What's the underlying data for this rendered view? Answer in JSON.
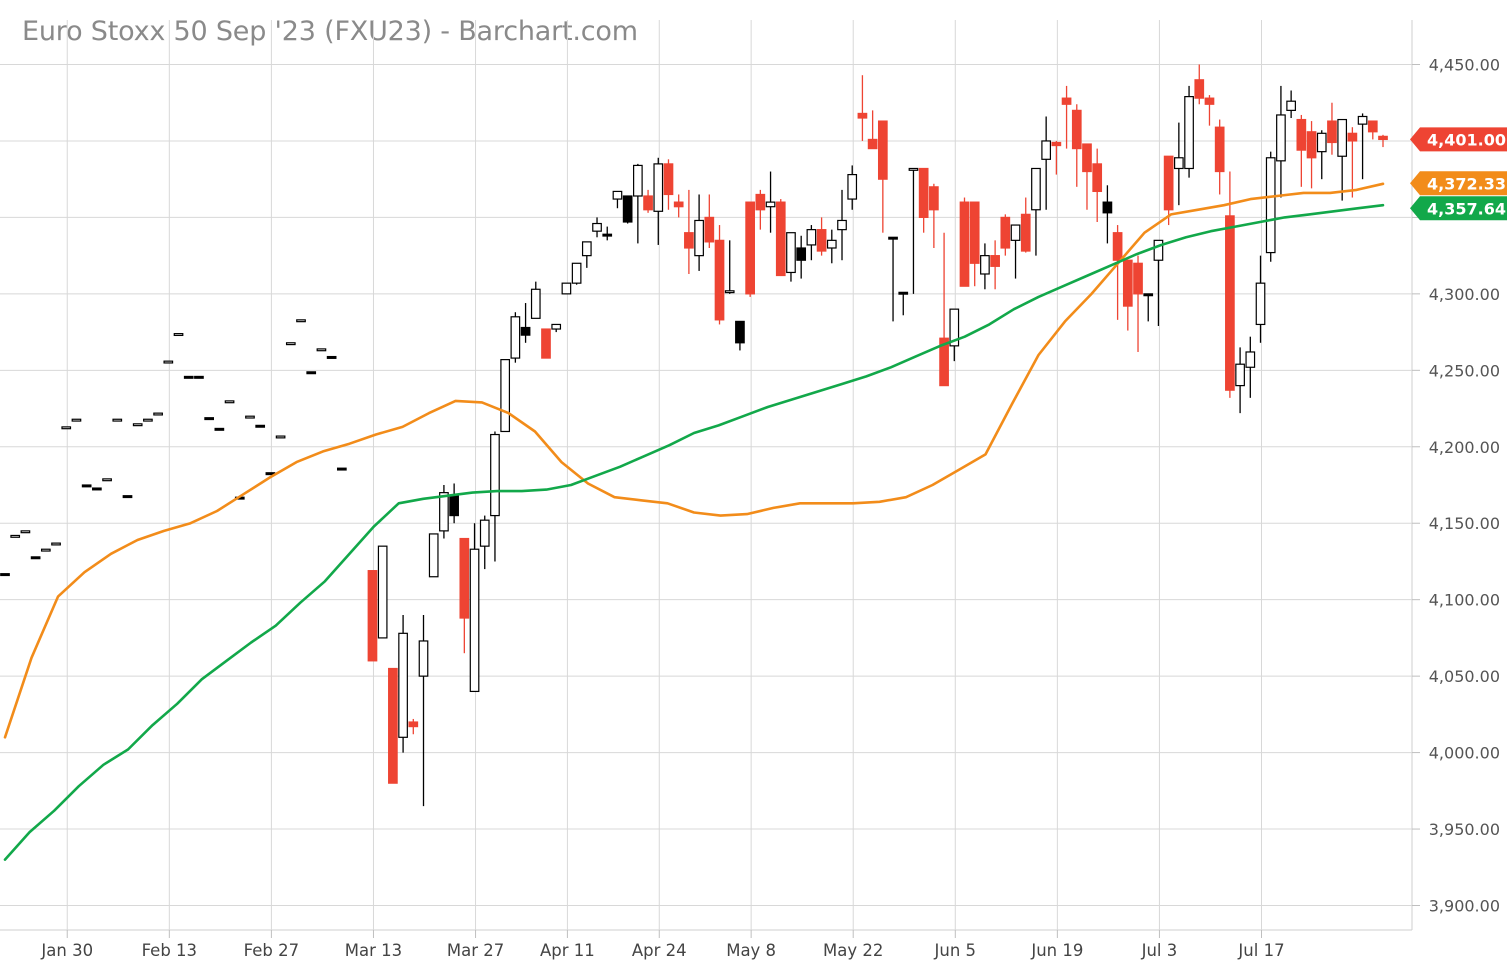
{
  "title": "Euro Stoxx 50 Sep '23 (FXU23) - Barchart.com",
  "colors": {
    "up": "#000000",
    "down": "#ee4433",
    "ma_fast": "#f28c1a",
    "ma_slow": "#12a84a",
    "grid": "#d8d8d8"
  },
  "chart_data": {
    "type": "candlestick",
    "title": "Euro Stoxx 50 Sep '23 (FXU23) - Barchart.com",
    "ylim": [
      3880,
      4465
    ],
    "y_ticks": [
      3900,
      3950,
      4000,
      4050,
      4100,
      4150,
      4200,
      4250,
      4300,
      4350,
      4400,
      4450
    ],
    "y_tick_labels": [
      "3,900.00",
      "3,950.00",
      "4,000.00",
      "4,050.00",
      "4,100.00",
      "4,150.00",
      "4,200.00",
      "4,250.00",
      "4,300.00",
      "",
      "",
      "4,450.00"
    ],
    "x_tick_labels": [
      "Jan 30",
      "Feb 13",
      "Feb 27",
      "Mar 13",
      "Mar 27",
      "Apr 11",
      "Apr 24",
      "May 8",
      "May 22",
      "Jun 5",
      "Jun 19",
      "Jul 3",
      "Jul 17"
    ],
    "x_tick_index": [
      6,
      16,
      26,
      36,
      46,
      55,
      64,
      73,
      83,
      93,
      103,
      113,
      123
    ],
    "x_index_range": [
      2.6,
      132
    ],
    "grid": true,
    "ohlc": [
      [
        4117,
        4117,
        4117,
        4117
      ],
      [
        4142,
        4142,
        4142,
        4142
      ],
      [
        4145,
        4145,
        4145,
        4145
      ],
      [
        4128,
        4128,
        4128,
        4128
      ],
      [
        4133,
        4133,
        4133,
        4133
      ],
      [
        4137,
        4137,
        4137,
        4137
      ],
      [
        4213,
        4213,
        4213,
        4213
      ],
      [
        4218,
        4218,
        4218,
        4218
      ],
      [
        4175,
        4175,
        4175,
        4175
      ],
      [
        4173,
        4173,
        4173,
        4173
      ],
      [
        4179,
        4179,
        4179,
        4179
      ],
      [
        4218,
        4218,
        4218,
        4218
      ],
      [
        4168,
        4168,
        4168,
        4168
      ],
      [
        4215,
        4215,
        4215,
        4215
      ],
      [
        4218,
        4218,
        4218,
        4218
      ],
      [
        4222,
        4222,
        4222,
        4222
      ],
      [
        4256,
        4256,
        4256,
        4256
      ],
      [
        4274,
        4274,
        4274,
        4274
      ],
      [
        4246,
        4246,
        4246,
        4246
      ],
      [
        4246,
        4246,
        4246,
        4246
      ],
      [
        4219,
        4219,
        4219,
        4219
      ],
      [
        4212,
        4212,
        4212,
        4212
      ],
      [
        4230,
        4230,
        4230,
        4230
      ],
      [
        4167,
        4167,
        4167,
        4167
      ],
      [
        4220,
        4220,
        4220,
        4220
      ],
      [
        4214,
        4214,
        4214,
        4214
      ],
      [
        4183,
        4183,
        4183,
        4183
      ],
      [
        4207,
        4207,
        4207,
        4207
      ],
      [
        4268,
        4268,
        4268,
        4268
      ],
      [
        4283,
        4283,
        4283,
        4283
      ],
      [
        4249,
        4249,
        4249,
        4249
      ],
      [
        4264,
        4264,
        4264,
        4264
      ],
      [
        4259,
        4259,
        4259,
        4259
      ],
      [
        4186,
        4186,
        4186,
        4186
      ],
      [
        null,
        null,
        null,
        null
      ],
      [
        null,
        null,
        null,
        null
      ],
      [
        4119,
        4119,
        4060,
        4060
      ],
      [
        4075,
        4135,
        4075,
        4135
      ],
      [
        4055,
        4055,
        3980,
        3980
      ],
      [
        4010,
        4090,
        4000,
        4078
      ],
      [
        4020,
        4022,
        4012,
        4017
      ],
      [
        4050,
        4090,
        3965,
        4073
      ],
      [
        4115,
        4135,
        4115,
        4143
      ],
      [
        4145,
        4175,
        4140,
        4170
      ],
      [
        4155,
        4176,
        4150,
        4168
      ],
      [
        4140,
        4140,
        4065,
        4088
      ],
      [
        4040,
        4150,
        4040,
        4133
      ],
      [
        4135,
        4155,
        4120,
        4152
      ],
      [
        4155,
        4210,
        4125,
        4208
      ],
      [
        4210,
        4257,
        4210,
        4257
      ],
      [
        4258,
        4288,
        4255,
        4285
      ],
      [
        4273,
        4294,
        4268,
        4278
      ],
      [
        4284,
        4308,
        4285,
        4303
      ],
      [
        4277,
        4277,
        4258,
        4258
      ],
      [
        4277,
        4279,
        4275,
        4280
      ],
      [
        4300,
        4307,
        4300,
        4307
      ],
      [
        4307,
        4320,
        4306,
        4320
      ],
      [
        4325,
        4334,
        4317,
        4334
      ],
      [
        4341,
        4350,
        4337,
        4346
      ],
      [
        4339,
        4344,
        4335,
        4339
      ],
      [
        4362,
        4364,
        4356,
        4367
      ],
      [
        4347,
        4362,
        4346,
        4364
      ],
      [
        4364,
        4385,
        4333,
        4384
      ],
      [
        4364,
        4368,
        4353,
        4355
      ],
      [
        4354,
        4389,
        4332,
        4385
      ],
      [
        4385,
        4388,
        4355,
        4365
      ],
      [
        4360,
        4365,
        4350,
        4357
      ],
      [
        4340,
        4368,
        4313,
        4330
      ],
      [
        4325,
        4365,
        4315,
        4348
      ],
      [
        4350,
        4365,
        4330,
        4334
      ],
      [
        4335,
        4345,
        4280,
        4283
      ],
      [
        4302,
        4335,
        4300,
        4302
      ],
      [
        4268,
        4280,
        4263,
        4282
      ],
      [
        4360,
        4320,
        4298,
        4300
      ],
      [
        4365,
        4368,
        4342,
        4355
      ],
      [
        4357,
        4380,
        4340,
        4360
      ],
      [
        4360,
        4362,
        4318,
        4312
      ],
      [
        4314,
        4338,
        4308,
        4340
      ],
      [
        4322,
        4338,
        4310,
        4330
      ],
      [
        4332,
        4345,
        4322,
        4342
      ],
      [
        4342,
        4350,
        4325,
        4328
      ],
      [
        4330,
        4342,
        4320,
        4335
      ],
      [
        4342,
        4368,
        4322,
        4348
      ],
      [
        4362,
        4384,
        4355,
        4378
      ],
      [
        4418,
        4443,
        4400,
        4415
      ],
      [
        4401,
        4420,
        4399,
        4395
      ],
      [
        4413,
        4413,
        4340,
        4375
      ],
      [
        4337,
        4337,
        4282,
        4337
      ],
      [
        4301,
        4301,
        4286,
        4301
      ],
      [
        4382,
        4382,
        4300,
        4382
      ],
      [
        4382,
        4382,
        4340,
        4350
      ],
      [
        4370,
        4372,
        4330,
        4355
      ],
      [
        4271,
        4340,
        4300,
        4240
      ],
      [
        4266,
        4280,
        4256,
        4290
      ],
      [
        4360,
        4363,
        4308,
        4305
      ],
      [
        4360,
        4360,
        4305,
        4320
      ],
      [
        4313,
        4333,
        4303,
        4325
      ],
      [
        4325,
        4335,
        4303,
        4318
      ],
      [
        4350,
        4352,
        4325,
        4330
      ],
      [
        4335,
        4345,
        4310,
        4345
      ],
      [
        4352,
        4363,
        4327,
        4328
      ],
      [
        4355,
        4372,
        4325,
        4382
      ],
      [
        4388,
        4416,
        4355,
        4400
      ],
      [
        4399,
        4400,
        4378,
        4397
      ],
      [
        4428,
        4436,
        4395,
        4424
      ],
      [
        4420,
        4424,
        4370,
        4395
      ],
      [
        4398,
        4385,
        4355,
        4380
      ],
      [
        4385,
        4395,
        4347,
        4367
      ],
      [
        4353,
        4371,
        4333,
        4360
      ],
      [
        4340,
        4345,
        4283,
        4322
      ],
      [
        4322,
        4305,
        4276,
        4292
      ],
      [
        4320,
        4325,
        4262,
        4300
      ],
      [
        4300,
        4300,
        4282,
        4300
      ],
      [
        4322,
        4332,
        4279,
        4335
      ],
      [
        4390,
        4390,
        4345,
        4355
      ],
      [
        4382,
        4412,
        4358,
        4389
      ],
      [
        4382,
        4436,
        4376,
        4429
      ],
      [
        4440,
        4450,
        4424,
        4428
      ],
      [
        4428,
        4430,
        4410,
        4424
      ],
      [
        4409,
        4414,
        4365,
        4380
      ],
      [
        4351,
        4380,
        4232,
        4237
      ],
      [
        4240,
        4265,
        4222,
        4254
      ],
      [
        4252,
        4272,
        4232,
        4262
      ],
      [
        4280,
        4325,
        4268,
        4307
      ],
      [
        4327,
        4393,
        4321,
        4389
      ],
      [
        4387,
        4436,
        4363,
        4417
      ],
      [
        4420,
        4433,
        4415,
        4426
      ],
      [
        4414,
        4417,
        4370,
        4394
      ],
      [
        4406,
        4413,
        4369,
        4389
      ],
      [
        4393,
        4407,
        4375,
        4405
      ],
      [
        4413,
        4425,
        4391,
        4399
      ],
      [
        4390,
        4412,
        4361,
        4414
      ],
      [
        4405,
        4409,
        4363,
        4400
      ],
      [
        4411,
        4418,
        4375,
        4416
      ],
      [
        4413,
        4412,
        4401,
        4406
      ],
      [
        4403,
        4404,
        4396,
        4401
      ]
    ],
    "series": [
      {
        "values": [
          4010,
          4062,
          4102,
          4118,
          4130,
          4139,
          4145,
          4150,
          4158,
          4169,
          4180,
          4190,
          4197,
          4202,
          4208,
          4213,
          4222,
          4230,
          4229,
          4222,
          4210,
          4190,
          4176,
          4167,
          4165,
          4163,
          4157,
          4155,
          4156,
          4160,
          4163,
          4163,
          4163,
          4164,
          4167,
          4175,
          4185,
          4195,
          4228,
          4260,
          4282,
          4300,
          4320,
          4340,
          4352,
          4355,
          4358,
          4362,
          4364,
          4366,
          4366,
          4368,
          4372
        ]
      },
      {
        "values": [
          3930,
          3948,
          3962,
          3978,
          3992,
          4002,
          4018,
          4032,
          4048,
          4060,
          4072,
          4083,
          4098,
          4112,
          4130,
          4148,
          4163,
          4166,
          4168,
          4170,
          4171,
          4171,
          4172,
          4175,
          4181,
          4187,
          4194,
          4201,
          4209,
          4214,
          4220,
          4226,
          4231,
          4236,
          4241,
          4246,
          4252,
          4259,
          4266,
          4272,
          4280,
          4290,
          4298,
          4305,
          4312,
          4319,
          4326,
          4332,
          4337,
          4341,
          4344,
          4347,
          4350,
          4352,
          4354,
          4356,
          4358
        ]
      }
    ],
    "last_price": {
      "value": "4,401.00"
    },
    "ma_fast_last": {
      "value": "4,372.33"
    },
    "ma_slow_last": {
      "value": "4,357.64"
    }
  }
}
